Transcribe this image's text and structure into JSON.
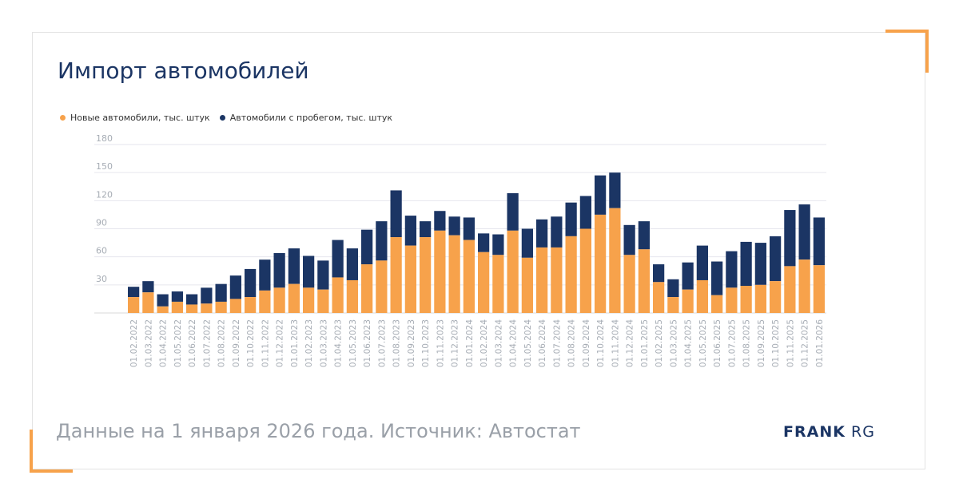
{
  "title": "Импорт автомобилей",
  "footer": {
    "source": "Данные на 1 января 2026 года. Источник: Автостат",
    "logo_bold": "FRANK",
    "logo_light": "RG"
  },
  "colors": {
    "new": "#f7a24b",
    "used": "#1b3564",
    "accent": "#f7a24b"
  },
  "chart_data": {
    "type": "bar",
    "stacked": true,
    "legend": [
      "Новые автомобили, тыс. штук",
      "Автомобили с пробегом, тыс. штук"
    ],
    "ylim": [
      0,
      180
    ],
    "yticks": [
      30,
      60,
      90,
      120,
      150,
      180
    ],
    "categories": [
      "01.02.2022",
      "01.03.2022",
      "01.04.2022",
      "01.05.2022",
      "01.06.2022",
      "01.07.2022",
      "01.08.2022",
      "01.09.2022",
      "01.10.2022",
      "01.11.2022",
      "01.12.2022",
      "01.01.2023",
      "01.02.2023",
      "01.03.2023",
      "01.04.2023",
      "01.05.2023",
      "01.06.2023",
      "01.07.2023",
      "01.08.2023",
      "01.09.2023",
      "01.10.2023",
      "01.11.2023",
      "01.12.2023",
      "01.01.2024",
      "01.02.2024",
      "01.03.2024",
      "01.04.2024",
      "01.05.2024",
      "01.06.2024",
      "01.07.2024",
      "01.08.2024",
      "01.09.2024",
      "01.10.2024",
      "01.11.2024",
      "01.12.2024",
      "01.01.2025",
      "01.02.2025",
      "01.03.2025",
      "01.04.2025",
      "01.05.2025",
      "01.06.2025",
      "01.07.2025",
      "01.08.2025",
      "01.09.2025",
      "01.10.2025",
      "01.11.2025",
      "01.12.2025",
      "01.01.2026"
    ],
    "series": [
      {
        "name": "Новые автомобили, тыс. штук",
        "values": [
          17,
          22,
          7,
          12,
          9,
          10,
          12,
          15,
          17,
          24,
          27,
          31,
          27,
          25,
          38,
          35,
          52,
          56,
          81,
          72,
          81,
          88,
          83,
          78,
          65,
          62,
          88,
          59,
          70,
          70,
          82,
          90,
          105,
          112,
          62,
          68,
          33,
          17,
          25,
          35,
          19,
          27,
          29,
          30,
          34,
          50,
          57,
          51
        ]
      },
      {
        "name": "Автомобили с пробегом, тыс. штук",
        "values": [
          11,
          12,
          13,
          11,
          11,
          17,
          19,
          25,
          30,
          33,
          37,
          38,
          34,
          31,
          40,
          34,
          37,
          42,
          50,
          32,
          17,
          21,
          20,
          24,
          20,
          22,
          40,
          31,
          30,
          33,
          36,
          35,
          42,
          38,
          32,
          30,
          19,
          19,
          29,
          37,
          36,
          39,
          47,
          45,
          48,
          60,
          59,
          51
        ]
      }
    ]
  }
}
